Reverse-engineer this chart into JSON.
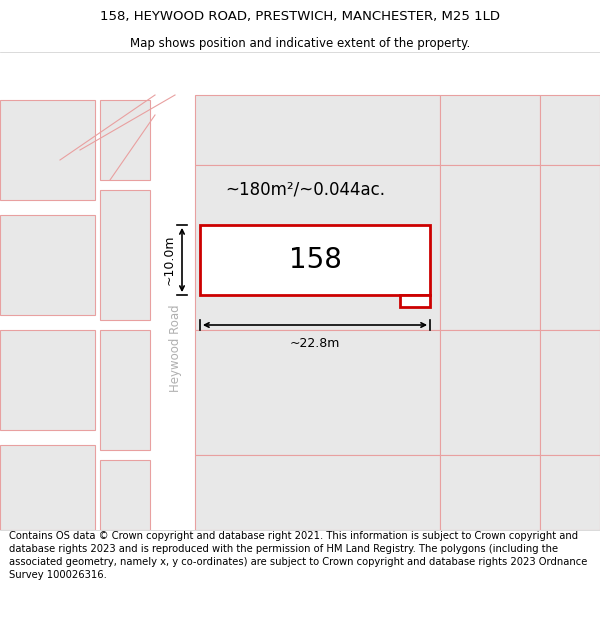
{
  "title_line1": "158, HEYWOOD ROAD, PRESTWICH, MANCHESTER, M25 1LD",
  "title_line2": "Map shows position and indicative extent of the property.",
  "footer_text": "Contains OS data © Crown copyright and database right 2021. This information is subject to Crown copyright and database rights 2023 and is reproduced with the permission of HM Land Registry. The polygons (including the associated geometry, namely x, y co-ordinates) are subject to Crown copyright and database rights 2023 Ordnance Survey 100026316.",
  "area_label": "~180m²/~0.044ac.",
  "width_label": "~22.8m",
  "height_label": "~10.0m",
  "property_number": "158",
  "road_label": "Heywood Road",
  "bg_color": "#ffffff",
  "map_bg": "#ffffff",
  "parcel_fill": "#e8e8e8",
  "parcel_stroke": "#e8a0a0",
  "highlight_fill": "#ffffff",
  "highlight_stroke": "#cc0000",
  "road_label_color": "#b0b0b0",
  "title_fontsize": 9.5,
  "subtitle_fontsize": 8.5,
  "footer_fontsize": 7.2,
  "property_fontsize": 20,
  "area_fontsize": 12,
  "dim_fontsize": 9
}
